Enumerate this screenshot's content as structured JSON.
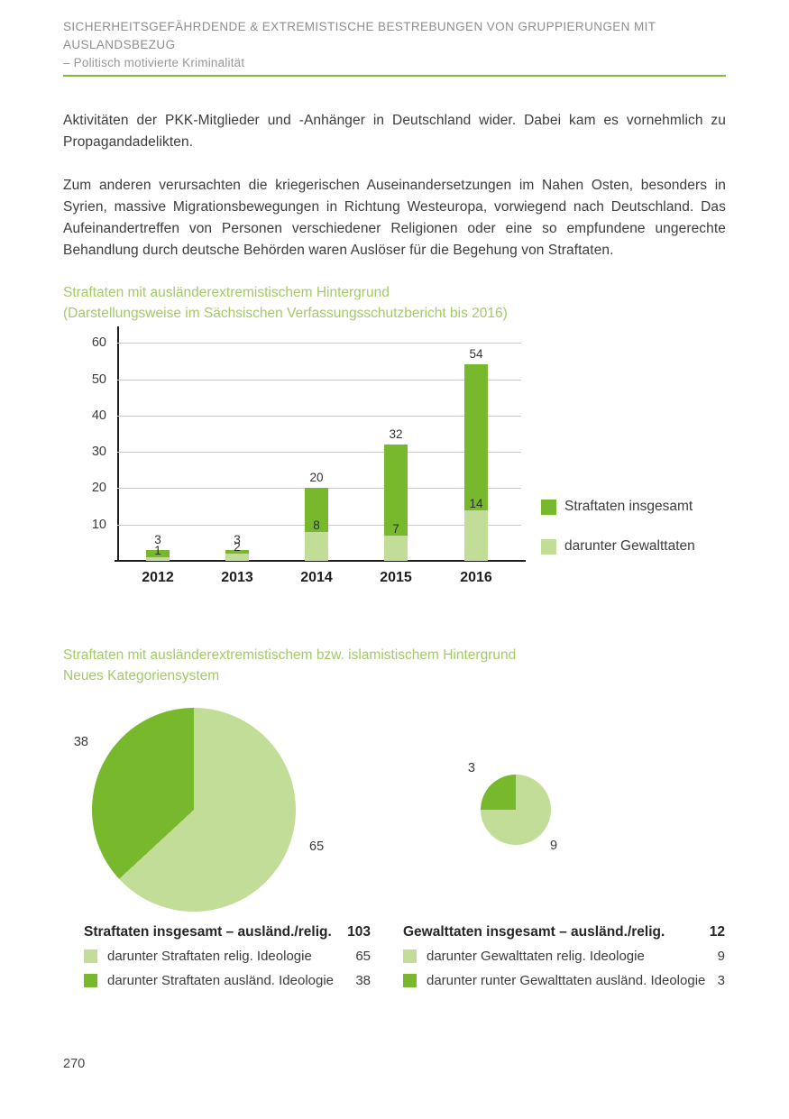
{
  "header": {
    "line1": "SICHERHEITSGEFÄHRDENDE & EXTREMISTISCHE BESTREBUNGEN VON GRUPPIERUNGEN MIT AUSLANDSBEZUG",
    "line2": "– Politisch motivierte Kriminalität"
  },
  "paragraphs": {
    "p1": "Aktivitäten der PKK-Mitglieder und -Anhänger in Deutschland wider. Dabei kam es vornehmlich zu Propagandadelikten.",
    "p2": "Zum anderen verursachten die kriegerischen Auseinandersetzungen im Nahen Osten, besonders in Syrien, massive Migrationsbewegungen in Richtung Westeuropa, vorwiegend nach Deutschland. Das Aufeinandertreffen von Personen verschiedener Religionen oder eine so empfundene ungerechte Behandlung durch deutsche Behörden waren Auslöser für die Begehung von Straftaten."
  },
  "colors": {
    "dark_green": "#77b82d",
    "light_green": "#c1dd97",
    "title_green": "#a3ca67",
    "grid_gray": "#cbcbcb"
  },
  "chart_data": [
    {
      "type": "bar",
      "title_line1": "Straftaten mit ausländerextremistischem Hintergrund",
      "title_line2": "(Darstellungsweise im Sächsischen Verfassungsschutzbericht bis 2016)",
      "categories": [
        "2012",
        "2013",
        "2014",
        "2015",
        "2016"
      ],
      "series": [
        {
          "name": "Straftaten insgesamt",
          "values": [
            3,
            3,
            20,
            32,
            54
          ],
          "color_key": "dark"
        },
        {
          "name": "darunter Gewalttaten",
          "values": [
            1,
            2,
            8,
            7,
            14
          ],
          "color_key": "light"
        }
      ],
      "stacking": "total bar height = Straftaten insgesamt; light bottom segment = darunter Gewalttaten",
      "yticks": [
        10,
        20,
        30,
        40,
        50,
        60
      ],
      "ylim": [
        0,
        62
      ],
      "grid": true,
      "legend_position": "right"
    },
    {
      "type": "pie",
      "title_line1": "Straftaten mit ausländerextremistischem bzw. islamistischem Hintergrund",
      "title_line2": "Neues Kategoriensystem",
      "pies": [
        {
          "name": "Straftaten",
          "slices": [
            {
              "label": "65",
              "value": 65,
              "color_key": "light"
            },
            {
              "label": "38",
              "value": 38,
              "color_key": "dark"
            }
          ]
        },
        {
          "name": "Gewalttaten",
          "slices": [
            {
              "label": "9",
              "value": 9,
              "color_key": "light"
            },
            {
              "label": "3",
              "value": 3,
              "color_key": "dark"
            }
          ]
        }
      ],
      "legend_left": {
        "header_label": "Straftaten insgesamt – ausländ./relig.",
        "header_value": "103",
        "rows": [
          {
            "swatch": "light",
            "label": "darunter Straftaten relig. Ideologie",
            "value": "65"
          },
          {
            "swatch": "dark",
            "label": "darunter Straftaten ausländ. Ideologie",
            "value": "38"
          }
        ]
      },
      "legend_right": {
        "header_label": "Gewalttaten insgesamt – ausländ./relig.",
        "header_value": "12",
        "rows": [
          {
            "swatch": "light",
            "label": "darunter Gewalttaten relig. Ideologie",
            "value": "9"
          },
          {
            "swatch": "dark",
            "label": "darunter runter Gewalttaten ausländ. Ideologie",
            "value": "3"
          }
        ]
      }
    }
  ],
  "page_number": "270"
}
